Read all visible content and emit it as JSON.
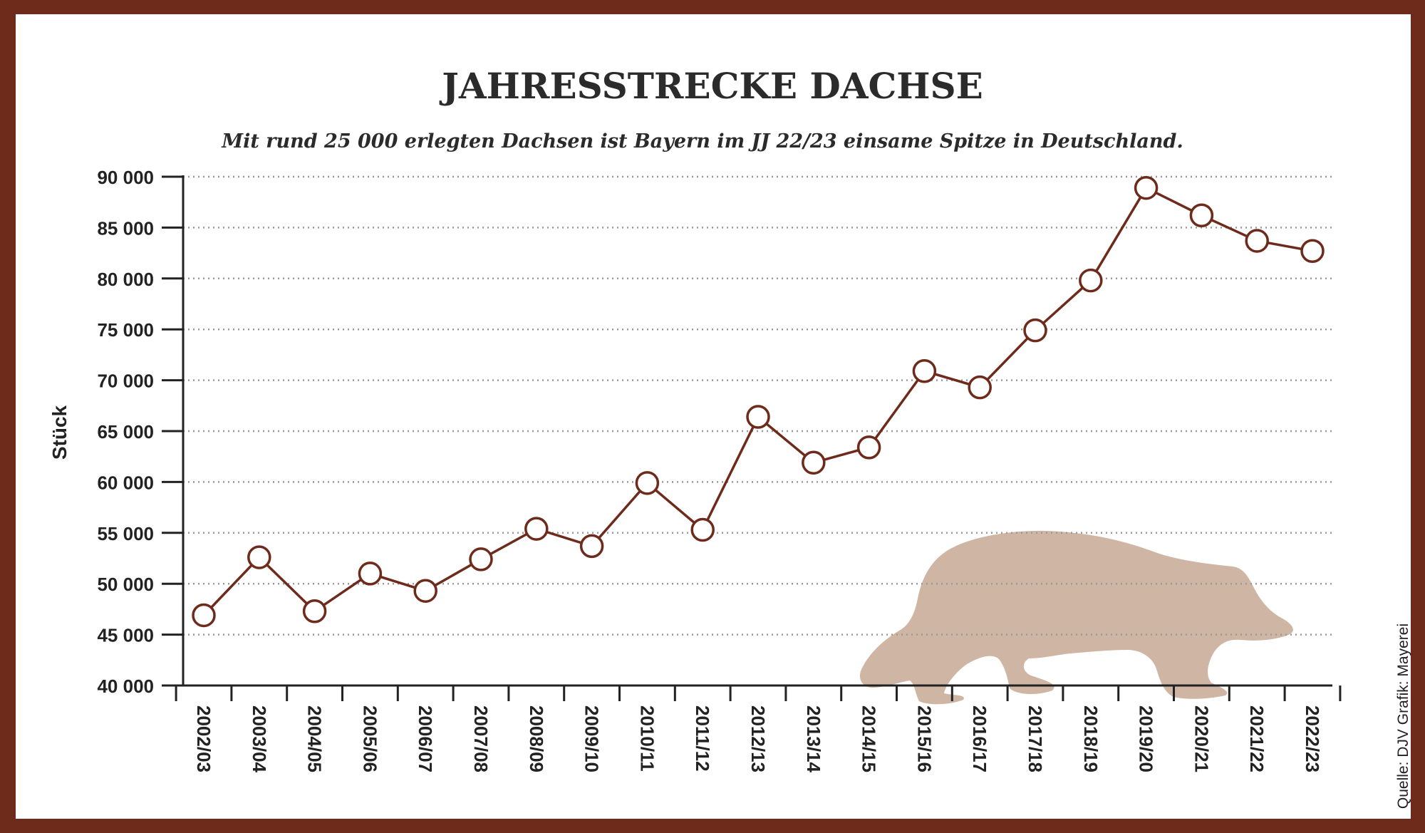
{
  "colors": {
    "frame": "#6e2a1b",
    "background": "#ffffff",
    "line": "#6e2a1b",
    "marker_fill": "#ffffff",
    "grid": "#999999",
    "badger": "#cfb5a3",
    "text": "#2b2b2b"
  },
  "icons": {
    "illustration": "badger-icon"
  },
  "source": "Quelle: DJV Grafik: Mayerei",
  "chart_data": {
    "type": "line",
    "title": "JAHRESSTRECKE DACHSE",
    "subtitle": "Mit rund 25 000 erlegten Dachsen ist Bayern im JJ 22/23 einsame Spitze in Deutschland.",
    "xlabel": "",
    "ylabel": "Stück",
    "ylim": [
      40000,
      90000
    ],
    "yticks": [
      40000,
      45000,
      50000,
      55000,
      60000,
      65000,
      70000,
      75000,
      80000,
      85000,
      90000
    ],
    "ytick_labels": [
      "40 000",
      "45 000",
      "50 000",
      "55 000",
      "60 000",
      "65 000",
      "70 000",
      "75 000",
      "80 000",
      "85 000",
      "90 000"
    ],
    "grid": true,
    "categories": [
      "2002/03",
      "2003/04",
      "2004/05",
      "2005/06",
      "2006/07",
      "2007/08",
      "2008/09",
      "2009/10",
      "2010/11",
      "2011/12",
      "2012/13",
      "2013/14",
      "2014/15",
      "2015/16",
      "2016/17",
      "2017/18",
      "2018/19",
      "2019/20",
      "2020/21",
      "2021/22",
      "2022/23"
    ],
    "series": [
      {
        "values": [
          46900,
          52600,
          47300,
          51000,
          49300,
          52400,
          55400,
          53700,
          59900,
          55300,
          66400,
          61900,
          63400,
          70900,
          69300,
          74900,
          79800,
          88900,
          86200,
          83700,
          82700
        ]
      }
    ]
  }
}
